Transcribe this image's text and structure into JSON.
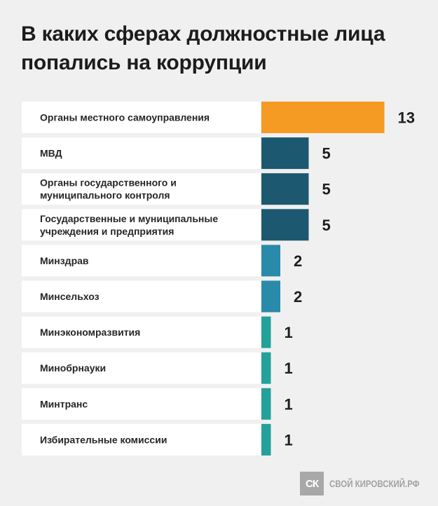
{
  "header": {
    "title_line1": "В каких сферах должностные лица",
    "title_line2": "попались на коррупции"
  },
  "chart_data": {
    "type": "bar",
    "orientation": "horizontal",
    "categories": [
      [
        "Органы местного самоуправления"
      ],
      [
        "МВД"
      ],
      [
        "Органы государственного и",
        "муниципального контроля"
      ],
      [
        "Государственные и муниципальные",
        "учреждения и предприятия"
      ],
      [
        "Минздрав"
      ],
      [
        "Минсельхоз"
      ],
      [
        "Минэкономразвития"
      ],
      [
        "Минобрнауки"
      ],
      [
        "Минтранс"
      ],
      [
        "Избирательные комиссии"
      ]
    ],
    "values": [
      13,
      5,
      5,
      5,
      2,
      2,
      1,
      1,
      1,
      1
    ],
    "colors": {
      "13": "#f59a23",
      "5": "#1c5870",
      "2": "#2a8aaa",
      "1": "#23a19a"
    },
    "title": "В каких сферах должностные лица попались на коррупции",
    "grid": false,
    "legend": "none"
  },
  "footer": {
    "logo_text": "СК",
    "site_name": "СВОЙ КИРОВСКИЙ.РФ"
  }
}
